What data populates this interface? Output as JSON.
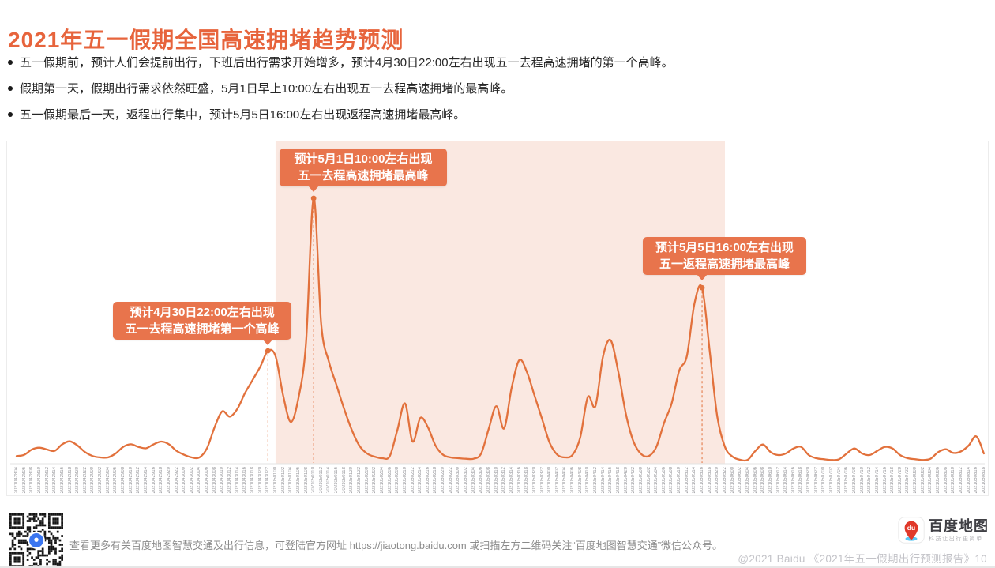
{
  "page": {
    "title": "2021年五一假期全国高速拥堵趋势预测",
    "accent_color": "#e7643c",
    "bullets": [
      "五一假期前，预计人们会提前出行，下班后出行需求开始增多，预计4月30日22:00左右出现五一去程高速拥堵的第一个高峰。",
      "假期第一天，假期出行需求依然旺盛，5月1日早上10:00左右出现五一去程高速拥堵的最高峰。",
      "五一假期最后一天，返程出行集中，预计5月5日16:00左右出现返程高速拥堵最高峰。"
    ]
  },
  "chart_data": {
    "type": "line",
    "title": "2021年五一假期全国高速拥堵趋势预测",
    "xlabel": "",
    "ylabel": "",
    "y_axis_visible": false,
    "grid": false,
    "legend": "none",
    "value_scale": "相对拥堵程度(0-100,100=5月1日10:00最高峰)",
    "line_color": "#e2713c",
    "shade_color": "#fae8e1",
    "annotation_bg": "#e8744c",
    "annotation_text_color": "#ffffff",
    "tick_color": "#9a9a9e",
    "shaded_range": {
      "from": "2021050100",
      "to": "2021050522"
    },
    "categories": [
      "2021042804",
      "2021042806",
      "2021042808",
      "2021042810",
      "2021042812",
      "2021042814",
      "2021042816",
      "2021042818",
      "2021042820",
      "2021042822",
      "2021042900",
      "2021042902",
      "2021042904",
      "2021042906",
      "2021042908",
      "2021042910",
      "2021042912",
      "2021042914",
      "2021042916",
      "2021042918",
      "2021042920",
      "2021042922",
      "2021043000",
      "2021043002",
      "2021043004",
      "2021043006",
      "2021043008",
      "2021043010",
      "2021043012",
      "2021043014",
      "2021043016",
      "2021043018",
      "2021043020",
      "2021043022",
      "2021050100",
      "2021050102",
      "2021050104",
      "2021050106",
      "2021050108",
      "2021050110",
      "2021050112",
      "2021050114",
      "2021050116",
      "2021050118",
      "2021050120",
      "2021050122",
      "2021050200",
      "2021050202",
      "2021050204",
      "2021050206",
      "2021050208",
      "2021050210",
      "2021050212",
      "2021050214",
      "2021050216",
      "2021050218",
      "2021050220",
      "2021050222",
      "2021050300",
      "2021050302",
      "2021050304",
      "2021050306",
      "2021050308",
      "2021050310",
      "2021050312",
      "2021050314",
      "2021050316",
      "2021050318",
      "2021050320",
      "2021050322",
      "2021050400",
      "2021050402",
      "2021050404",
      "2021050406",
      "2021050408",
      "2021050410",
      "2021050412",
      "2021050414",
      "2021050416",
      "2021050418",
      "2021050420",
      "2021050422",
      "2021050500",
      "2021050502",
      "2021050504",
      "2021050506",
      "2021050508",
      "2021050510",
      "2021050512",
      "2021050514",
      "2021050516",
      "2021050518",
      "2021050520",
      "2021050522",
      "2021050600",
      "2021050602",
      "2021050604",
      "2021050606",
      "2021050608",
      "2021050610",
      "2021050612",
      "2021050614",
      "2021050616",
      "2021050618",
      "2021050620",
      "2021050622",
      "2021050700",
      "2021050702",
      "2021050704",
      "2021050706",
      "2021050708",
      "2021050710",
      "2021050712",
      "2021050714",
      "2021050716",
      "2021050718",
      "2021050720",
      "2021050722",
      "2021050800",
      "2021050802",
      "2021050804",
      "2021050806",
      "2021050808",
      "2021050810",
      "2021050812",
      "2021050814",
      "2021050816",
      "2021050818"
    ],
    "series": [
      {
        "name": "全国高速拥堵趋势预测",
        "values": [
          2,
          2.5,
          4.5,
          5.2,
          4.5,
          4,
          6.5,
          7.6,
          6,
          3.5,
          2,
          1.5,
          1.5,
          3,
          5.5,
          6.5,
          5.5,
          5,
          6.5,
          7.5,
          6.5,
          4,
          2.5,
          1.5,
          1.5,
          5,
          13,
          19,
          17,
          20,
          26,
          31,
          36,
          42,
          40,
          25,
          15,
          24,
          45,
          100,
          52,
          38,
          29,
          20,
          12,
          6,
          3,
          1.8,
          1.2,
          2,
          12,
          22,
          7.5,
          16.5,
          13,
          6,
          2.5,
          1.5,
          1.2,
          1,
          1,
          3,
          12.5,
          21,
          12.5,
          28,
          38.5,
          34,
          25,
          16,
          7,
          2.5,
          1.5,
          2.5,
          9,
          24.5,
          21,
          40,
          46,
          34,
          18,
          7.5,
          2.8,
          2,
          5.5,
          14.5,
          22,
          34.5,
          40,
          60,
          66,
          42,
          17,
          5.5,
          1.8,
          0.6,
          0.6,
          4,
          6.4,
          3.5,
          2.4,
          3,
          4.9,
          5.5,
          2.4,
          1.2,
          0.8,
          0.5,
          0.8,
          3,
          4.9,
          3,
          2.4,
          4,
          5.5,
          4.9,
          2.4,
          1.2,
          0.8,
          0.5,
          1,
          3.5,
          4.6,
          3.2,
          3.8,
          6,
          9.5,
          3
        ]
      }
    ],
    "annotations": [
      {
        "at": "2021043022",
        "lines": [
          "预计4月30日22:00左右出现",
          "五一去程高速拥堵第一个高峰"
        ]
      },
      {
        "at": "2021050110",
        "lines": [
          "预计5月1日10:00左右出现",
          "五一去程高速拥堵最高峰"
        ]
      },
      {
        "at": "2021050516",
        "lines": [
          "预计5月5日16:00左右出现",
          "五一返程高速拥堵最高峰"
        ]
      }
    ]
  },
  "footer": {
    "info": "查看更多有关百度地图智慧交通及出行信息，可登陆官方网址 https://jiaotong.baidu.com 或扫描左方二维码关注“百度地图智慧交通”微信公众号。",
    "logo_badge": "du",
    "logo_text": "百度地图",
    "logo_tagline": "科技让出行更简单",
    "copyright": "@2021 Baidu 《2021年五一假期出行预测报告》",
    "page_number": "10"
  }
}
